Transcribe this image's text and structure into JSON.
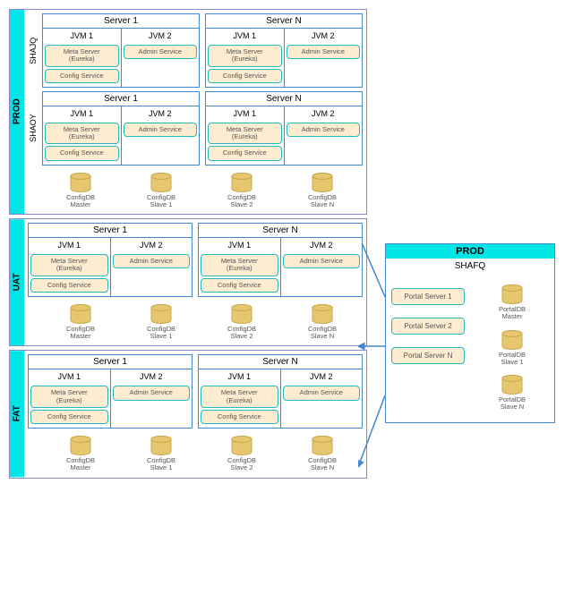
{
  "colors": {
    "accent": "#00e5e5",
    "border": "#4488cc",
    "svc_border": "#22bbbb",
    "svc_fill": "#fdeccf",
    "db_fill": "#e6c66f",
    "db_stroke": "#c9a94a"
  },
  "environments": [
    {
      "label": "PROD",
      "zones": [
        {
          "label": "SHAJQ",
          "servers": [
            "Server 1",
            "Server N"
          ]
        },
        {
          "label": "SHAOY",
          "servers": [
            "Server 1",
            "Server N"
          ]
        }
      ],
      "dbs": [
        {
          "name": "ConfigDB",
          "role": "Master"
        },
        {
          "name": "ConfigDB",
          "role": "Slave 1"
        },
        {
          "name": "ConfigDB",
          "role": "Slave 2"
        },
        {
          "name": "ConfigDB",
          "role": "Slave N"
        }
      ]
    },
    {
      "label": "UAT",
      "zones": [
        {
          "label": "",
          "servers": [
            "Server 1",
            "Server N"
          ]
        }
      ],
      "dbs": [
        {
          "name": "ConfigDB",
          "role": "Master"
        },
        {
          "name": "ConfigDB",
          "role": "Slave 1"
        },
        {
          "name": "ConfigDB",
          "role": "Slave 2"
        },
        {
          "name": "ConfigDB",
          "role": "Slave N"
        }
      ]
    },
    {
      "label": "FAT",
      "zones": [
        {
          "label": "",
          "servers": [
            "Server 1",
            "Server N"
          ]
        }
      ],
      "dbs": [
        {
          "name": "ConfigDB",
          "role": "Master"
        },
        {
          "name": "ConfigDB",
          "role": "Slave 1"
        },
        {
          "name": "ConfigDB",
          "role": "Slave 2"
        },
        {
          "name": "ConfigDB",
          "role": "Slave N"
        }
      ]
    }
  ],
  "jvm": {
    "jvm1": "JVM 1",
    "jvm2": "JVM 2",
    "meta": "Meta Server\n(Eureka)",
    "config": "Config Service",
    "admin": "Admin Service"
  },
  "right_panel": {
    "title": "PROD",
    "sub": "SHAFQ",
    "portals": [
      "Portal Server 1",
      "Portal Server 2",
      "Portal Server N"
    ],
    "dbs": [
      {
        "name": "PortalDB",
        "role": "Master"
      },
      {
        "name": "PortalDB",
        "role": "Slave 1"
      },
      {
        "name": "PortalDB",
        "role": "Slave N"
      }
    ]
  }
}
